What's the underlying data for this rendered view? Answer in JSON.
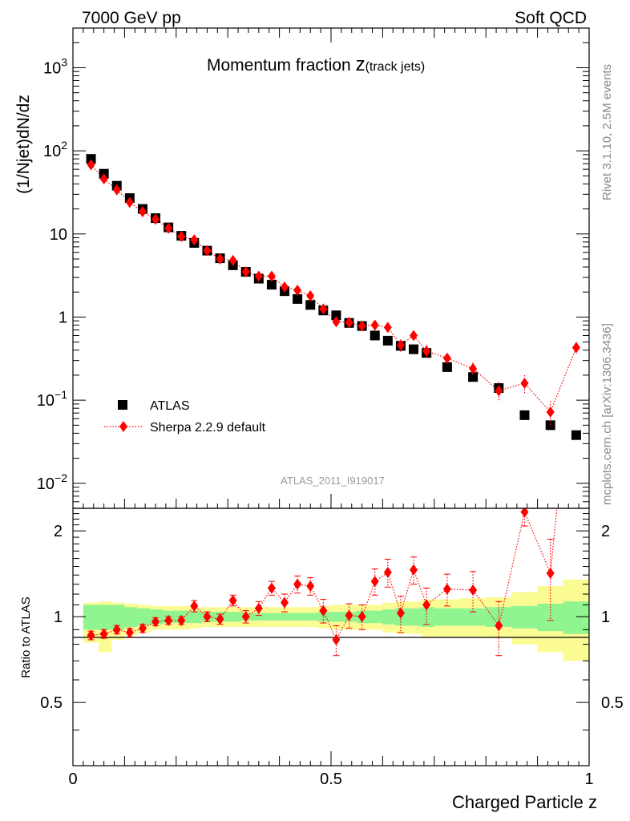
{
  "header": {
    "left_label": "7000 GeV pp",
    "right_label": "Soft QCD"
  },
  "side_labels": {
    "rivet": "Rivet 3.1.10,  2.5M events",
    "mcplots": "mcplots.cern.ch [arXiv:1306.3436]"
  },
  "chart_data": {
    "type": "scatter",
    "title_main": "Momentum fraction ",
    "title_var": "z",
    "title_sub": "(track jets)",
    "analysis_label": "ATLAS_2011_I919017",
    "xlabel": "Charged Particle z",
    "ylabel": "(1/Njet)dN/dz",
    "ratio_ylabel": "Ratio to ATLAS",
    "xlim": [
      0,
      1
    ],
    "ylim": [
      0.005,
      3000
    ],
    "log_y": true,
    "ratio_ylim": [
      0.3,
      2.4
    ],
    "legend_placement": "bottom-left",
    "x_ticks": [
      "0",
      "0.5",
      "1"
    ],
    "y_ticks": [
      {
        "base": "10",
        "exp": "−2"
      },
      {
        "base": "10",
        "exp": "−1"
      },
      {
        "base": "1",
        "exp": ""
      },
      {
        "base": "10",
        "exp": ""
      },
      {
        "base": "10",
        "exp": "2"
      },
      {
        "base": "10",
        "exp": "3"
      }
    ],
    "ratio_ticks": [
      "0.5",
      "1",
      "2"
    ],
    "series": [
      {
        "name": "ATLAS",
        "color": "#000000",
        "x": [
          0.035,
          0.06,
          0.085,
          0.11,
          0.135,
          0.16,
          0.185,
          0.21,
          0.235,
          0.26,
          0.285,
          0.31,
          0.335,
          0.36,
          0.385,
          0.41,
          0.435,
          0.46,
          0.485,
          0.51,
          0.535,
          0.56,
          0.585,
          0.61,
          0.635,
          0.66,
          0.685,
          0.725,
          0.775,
          0.825,
          0.875,
          0.925,
          0.975
        ],
        "y": [
          80,
          53,
          38,
          27,
          20,
          15.5,
          12,
          9.5,
          7.8,
          6.3,
          5.1,
          4.2,
          3.5,
          2.9,
          2.45,
          2.05,
          1.65,
          1.4,
          1.2,
          1.05,
          0.85,
          0.78,
          0.6,
          0.52,
          0.45,
          0.41,
          0.37,
          0.25,
          0.19,
          0.14,
          0.066,
          0.05,
          0.038
        ]
      },
      {
        "name": "Sherpa 2.2.9 default",
        "color": "#ff0000",
        "x": [
          0.035,
          0.06,
          0.085,
          0.11,
          0.135,
          0.16,
          0.185,
          0.21,
          0.235,
          0.26,
          0.285,
          0.31,
          0.335,
          0.36,
          0.385,
          0.41,
          0.435,
          0.46,
          0.485,
          0.51,
          0.535,
          0.56,
          0.585,
          0.61,
          0.635,
          0.66,
          0.685,
          0.725,
          0.775,
          0.825,
          0.875,
          0.925,
          0.975
        ],
        "y": [
          68,
          46,
          34,
          24,
          18.5,
          15,
          11.7,
          9.3,
          8.5,
          6.3,
          5.0,
          4.8,
          3.5,
          3.1,
          3.1,
          2.3,
          2.1,
          1.8,
          1.25,
          0.88,
          0.86,
          0.78,
          0.8,
          0.75,
          0.46,
          0.6,
          0.39,
          0.32,
          0.24,
          0.13,
          0.16,
          0.072,
          0.43
        ],
        "yerr": [
          3,
          2,
          1.5,
          1.1,
          0.9,
          0.7,
          0.6,
          0.5,
          0.6,
          0.4,
          0.35,
          0.35,
          0.3,
          0.3,
          0.3,
          0.25,
          0.25,
          0.2,
          0.15,
          0.12,
          0.1,
          0.1,
          0.11,
          0.11,
          0.08,
          0.09,
          0.07,
          0.05,
          0.045,
          0.035,
          0.04,
          0.025,
          0.07
        ],
        "ratio": [
          0.86,
          0.87,
          0.9,
          0.88,
          0.91,
          0.96,
          0.97,
          0.97,
          1.09,
          1.0,
          0.98,
          1.14,
          1.0,
          1.07,
          1.26,
          1.12,
          1.3,
          1.28,
          1.05,
          0.83,
          1.01,
          1.0,
          1.33,
          1.43,
          1.03,
          1.46,
          1.1,
          1.25,
          1.24,
          0.93,
          2.33,
          1.42,
          11.3
        ],
        "ratio_err": [
          0.03,
          0.03,
          0.03,
          0.03,
          0.03,
          0.03,
          0.03,
          0.03,
          0.05,
          0.04,
          0.04,
          0.05,
          0.05,
          0.06,
          0.07,
          0.08,
          0.09,
          0.09,
          0.1,
          0.1,
          0.1,
          0.1,
          0.14,
          0.16,
          0.15,
          0.16,
          0.16,
          0.16,
          0.2,
          0.2,
          0.25,
          0.45,
          2
        ]
      }
    ],
    "ratio_bands": {
      "edges": [
        0.02,
        0.05,
        0.075,
        0.1,
        0.125,
        0.15,
        0.175,
        0.2,
        0.225,
        0.25,
        0.275,
        0.3,
        0.325,
        0.35,
        0.375,
        0.4,
        0.425,
        0.45,
        0.475,
        0.5,
        0.525,
        0.55,
        0.575,
        0.6,
        0.625,
        0.65,
        0.675,
        0.7,
        0.75,
        0.8,
        0.85,
        0.9,
        0.95,
        1.0
      ],
      "inner_color": "#90f490",
      "outer_color": "#fbfb94",
      "inner_lo": [
        0.9,
        0.9,
        0.9,
        0.92,
        0.93,
        0.94,
        0.95,
        0.95,
        0.95,
        0.96,
        0.96,
        0.96,
        0.97,
        0.97,
        0.97,
        0.97,
        0.97,
        0.97,
        0.96,
        0.96,
        0.96,
        0.95,
        0.95,
        0.94,
        0.93,
        0.93,
        0.92,
        0.93,
        0.93,
        0.92,
        0.91,
        0.89,
        0.87
      ],
      "inner_hi": [
        1.1,
        1.1,
        1.1,
        1.08,
        1.07,
        1.06,
        1.05,
        1.05,
        1.05,
        1.04,
        1.04,
        1.04,
        1.03,
        1.03,
        1.03,
        1.03,
        1.03,
        1.03,
        1.04,
        1.04,
        1.04,
        1.05,
        1.05,
        1.06,
        1.07,
        1.07,
        1.08,
        1.07,
        1.07,
        1.08,
        1.09,
        1.11,
        1.13
      ],
      "outer_lo": [
        0.81,
        0.75,
        0.83,
        0.86,
        0.88,
        0.9,
        0.9,
        0.9,
        0.91,
        0.92,
        0.92,
        0.92,
        0.92,
        0.92,
        0.92,
        0.92,
        0.92,
        0.92,
        0.91,
        0.9,
        0.9,
        0.9,
        0.9,
        0.88,
        0.87,
        0.87,
        0.85,
        0.85,
        0.85,
        0.84,
        0.8,
        0.75,
        0.7
      ],
      "outer_hi": [
        1.12,
        1.13,
        1.12,
        1.11,
        1.1,
        1.09,
        1.09,
        1.09,
        1.08,
        1.08,
        1.08,
        1.08,
        1.08,
        1.08,
        1.08,
        1.08,
        1.08,
        1.08,
        1.09,
        1.1,
        1.1,
        1.1,
        1.1,
        1.12,
        1.13,
        1.13,
        1.15,
        1.15,
        1.16,
        1.17,
        1.22,
        1.28,
        1.35
      ]
    }
  }
}
